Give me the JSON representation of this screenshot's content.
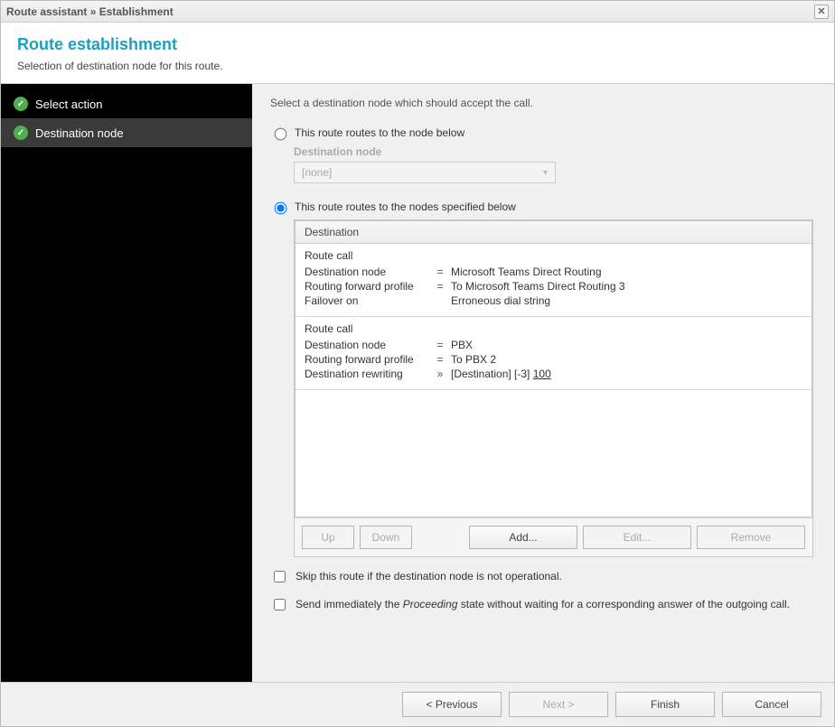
{
  "titlebar": "Route assistant » Establishment",
  "header": {
    "title": "Route establishment",
    "subtitle": "Selection of destination node for this route."
  },
  "sidebar": {
    "steps": [
      {
        "label": "Select action",
        "active": false
      },
      {
        "label": "Destination node",
        "active": true
      }
    ]
  },
  "main": {
    "instruction": "Select a destination node which should accept the call.",
    "option_single_label": "This route routes to the node below",
    "single_sub_label": "Destination node",
    "single_dropdown_value": "[none]",
    "option_multi_label": "This route routes to the nodes specified below",
    "dest_table": {
      "header": "Destination",
      "entries": [
        {
          "title": "Route call",
          "rows": [
            {
              "k": "Destination node",
              "eq": "=",
              "v": "Microsoft Teams Direct Routing"
            },
            {
              "k": "Routing forward profile",
              "eq": "=",
              "v": "To Microsoft Teams Direct Routing 3"
            },
            {
              "k": "Failover on",
              "eq": "",
              "v": "Erroneous dial string"
            }
          ]
        },
        {
          "title": "Route call",
          "rows": [
            {
              "k": "Destination node",
              "eq": "=",
              "v": "PBX"
            },
            {
              "k": "Routing forward profile",
              "eq": "=",
              "v": "To PBX 2"
            },
            {
              "k": "Destination rewriting",
              "eq": "»",
              "v_pre": "[Destination] [-3] ",
              "v_u": "100"
            }
          ]
        }
      ]
    },
    "buttons": {
      "up": "Up",
      "down": "Down",
      "add": "Add...",
      "edit": "Edit...",
      "remove": "Remove"
    },
    "check_skip": "Skip this route if the destination node is not operational.",
    "check_proceed_pre": "Send immediately the ",
    "check_proceed_italic": "Proceeding",
    "check_proceed_post": " state without waiting for a corresponding answer of the outgoing call."
  },
  "footer": {
    "previous": "< Previous",
    "next": "Next >",
    "finish": "Finish",
    "cancel": "Cancel"
  }
}
